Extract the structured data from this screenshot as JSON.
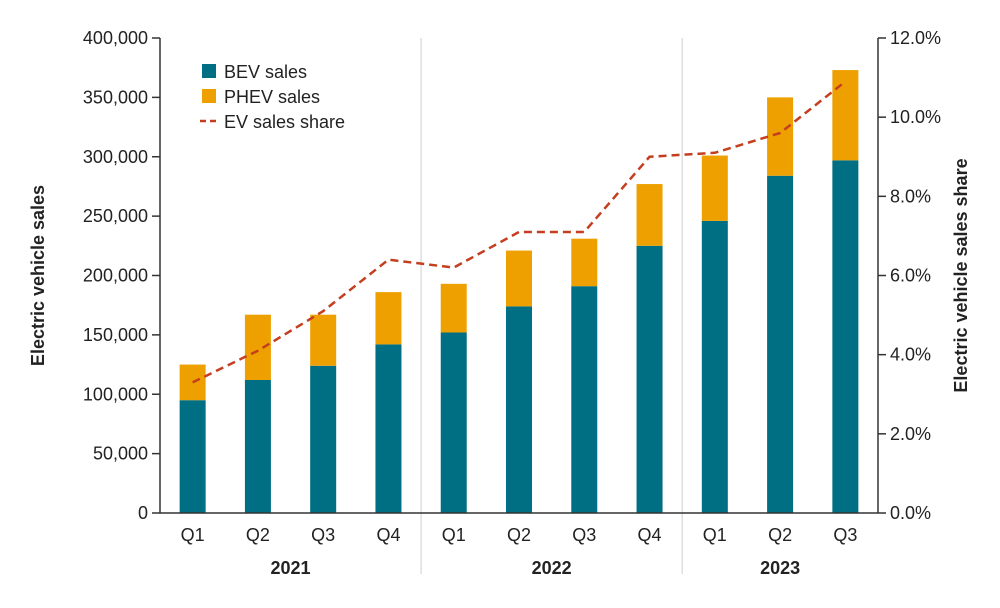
{
  "chart_data": {
    "type": "bar",
    "stacked": true,
    "categories": [
      "Q1",
      "Q2",
      "Q3",
      "Q4",
      "Q1",
      "Q2",
      "Q3",
      "Q4",
      "Q1",
      "Q2",
      "Q3"
    ],
    "year_groups": [
      {
        "label": "2021",
        "count": 4
      },
      {
        "label": "2022",
        "count": 4
      },
      {
        "label": "2023",
        "count": 3
      }
    ],
    "series": [
      {
        "name": "BEV sales",
        "type": "bar",
        "color": "#006f84",
        "values": [
          95000,
          112000,
          124000,
          142000,
          152000,
          174000,
          191000,
          225000,
          246000,
          284000,
          297000
        ]
      },
      {
        "name": "PHEV sales",
        "type": "bar",
        "color": "#eda000",
        "values": [
          30000,
          55000,
          43000,
          44000,
          41000,
          47000,
          40000,
          52000,
          55000,
          66000,
          76000
        ]
      },
      {
        "name": "EV sales share",
        "type": "line",
        "axis": "right",
        "color": "#c43e1f",
        "dash": true,
        "values": [
          3.3,
          4.1,
          5.1,
          6.4,
          6.2,
          7.1,
          7.1,
          9.0,
          9.1,
          9.6,
          10.9
        ]
      }
    ],
    "ylabel": "Electric vehicle sales",
    "ylim": [
      0,
      400000
    ],
    "yticks": [
      "0",
      "50,000",
      "100,000",
      "150,000",
      "200,000",
      "250,000",
      "300,000",
      "350,000",
      "400,000"
    ],
    "y2label": "Electric vehicle sales share",
    "y2lim": [
      0,
      12
    ],
    "y2ticks": [
      "0.0%",
      "2.0%",
      "4.0%",
      "6.0%",
      "8.0%",
      "10.0%",
      "12.0%"
    ],
    "legend_position": "top-left",
    "grid": false
  }
}
